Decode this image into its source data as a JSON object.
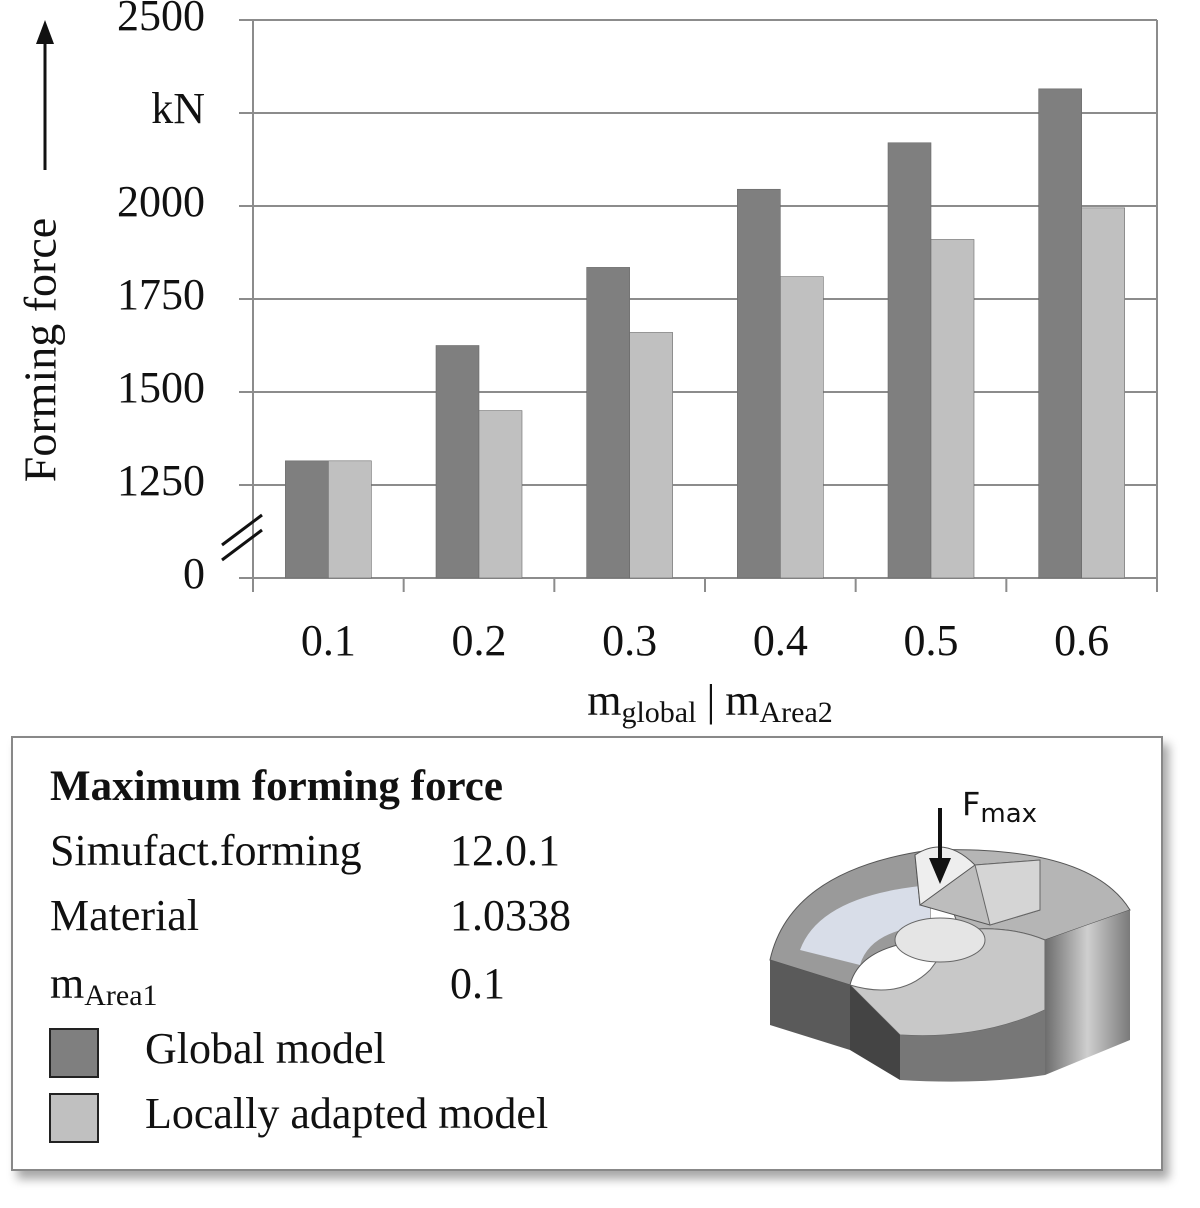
{
  "chart_data": {
    "type": "bar",
    "y_label": "Forming force",
    "x_label": [
      "m",
      "global",
      "|",
      "m",
      "Area2"
    ],
    "categories": [
      "0.1",
      "0.2",
      "0.3",
      "0.4",
      "0.5",
      "0.6"
    ],
    "series": [
      {
        "name": "Global model",
        "color": "#7f7f7f",
        "values": [
          1315,
          1625,
          1835,
          2045,
          2170,
          2315
        ]
      },
      {
        "name": "Locally adapted model",
        "color": "#c0c0c0",
        "values": [
          1315,
          1450,
          1660,
          1810,
          1910,
          1995
        ]
      }
    ],
    "ylim": [
      1000,
      2500
    ],
    "yticks": [
      {
        "value": 1000,
        "label": "0"
      },
      1250,
      1500,
      1750,
      2000,
      {
        "value": 2250,
        "label": "kN"
      },
      2500
    ],
    "grid": true,
    "info_box": {
      "title": "Maximum forming force",
      "rows": [
        [
          "Simufact.forming",
          "12.0.1"
        ],
        [
          "Material",
          "1.0338"
        ],
        [
          [
            "m",
            "Area1"
          ],
          "0.1"
        ]
      ]
    },
    "inset_label": [
      "F",
      "max"
    ]
  }
}
